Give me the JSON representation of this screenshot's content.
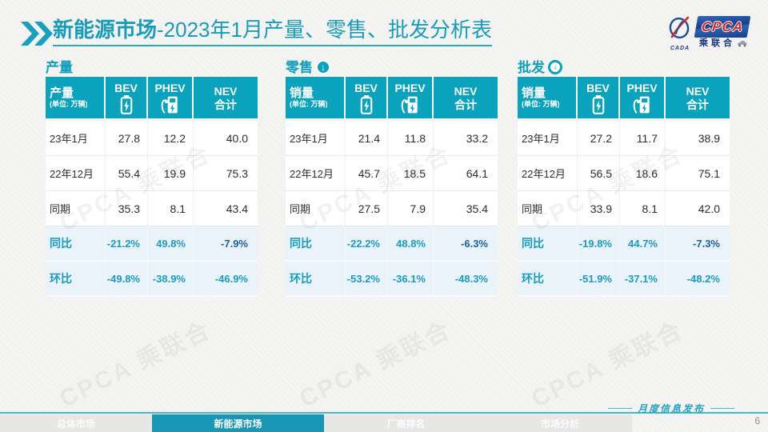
{
  "title": {
    "bold": "新能源市场",
    "rest": "-2023年1月产量、零售、批发分析表"
  },
  "logo": {
    "cpca": "CPCA",
    "cn": "乘联合",
    "sub": "CADA"
  },
  "watermark": "CPCA 乘联合",
  "colors": {
    "accent": "#0aa2bc",
    "pct_text": "#1b9cc4",
    "highlight": "#1a61a6",
    "active_tab": "#1896b3",
    "pct_row_bg": "#e9f3f9"
  },
  "tables": [
    {
      "section_title": "产量",
      "badge": "",
      "header_label": "产量",
      "header_unit": "(单位: 万辆)",
      "columns": [
        {
          "label": "BEV",
          "icon": "bev-battery-icon"
        },
        {
          "label": "PHEV",
          "icon": "phev-charger-icon"
        },
        {
          "label": "NEV",
          "sublabel": "合计"
        }
      ],
      "rows": [
        {
          "label": "23年1月",
          "type": "data",
          "values": [
            "27.8",
            "12.2",
            "40.0"
          ]
        },
        {
          "label": "22年12月",
          "type": "data",
          "values": [
            "55.4",
            "19.9",
            "75.3"
          ]
        },
        {
          "label": "同期",
          "type": "data",
          "values": [
            "35.3",
            "8.1",
            "43.4"
          ]
        },
        {
          "label": "同比",
          "type": "pct",
          "highlight_last": true,
          "values": [
            "-21.2%",
            "49.8%",
            "-7.9%"
          ]
        },
        {
          "label": "环比",
          "type": "pct",
          "values": [
            "-49.8%",
            "-38.9%",
            "-46.9%"
          ]
        }
      ]
    },
    {
      "section_title": "零售",
      "badge": "down-filled",
      "header_label": "销量",
      "header_unit": "(单位: 万辆)",
      "columns": [
        {
          "label": "BEV",
          "icon": "bev-battery-icon"
        },
        {
          "label": "PHEV",
          "icon": "phev-charger-icon"
        },
        {
          "label": "NEV",
          "sublabel": "合计"
        }
      ],
      "rows": [
        {
          "label": "23年1月",
          "type": "data",
          "values": [
            "21.4",
            "11.8",
            "33.2"
          ]
        },
        {
          "label": "22年12月",
          "type": "data",
          "values": [
            "45.7",
            "18.5",
            "64.1"
          ]
        },
        {
          "label": "同期",
          "type": "data",
          "values": [
            "27.5",
            "7.9",
            "35.4"
          ]
        },
        {
          "label": "同比",
          "type": "pct",
          "highlight_last": true,
          "values": [
            "-22.2%",
            "48.8%",
            "-6.3%"
          ]
        },
        {
          "label": "环比",
          "type": "pct",
          "values": [
            "-53.2%",
            "-36.1%",
            "-48.3%"
          ]
        }
      ]
    },
    {
      "section_title": "批发",
      "badge": "down-outline",
      "header_label": "销量",
      "header_unit": "(单位: 万辆)",
      "columns": [
        {
          "label": "BEV",
          "icon": "bev-battery-icon"
        },
        {
          "label": "PHEV",
          "icon": "phev-charger-icon"
        },
        {
          "label": "NEV",
          "sublabel": "合计"
        }
      ],
      "rows": [
        {
          "label": "23年1月",
          "type": "data",
          "values": [
            "27.2",
            "11.7",
            "38.9"
          ]
        },
        {
          "label": "22年12月",
          "type": "data",
          "values": [
            "56.5",
            "18.6",
            "75.1"
          ]
        },
        {
          "label": "同期",
          "type": "data",
          "values": [
            "33.9",
            "8.1",
            "42.0"
          ]
        },
        {
          "label": "同比",
          "type": "pct",
          "highlight_last": true,
          "values": [
            "-19.8%",
            "44.7%",
            "-7.3%"
          ]
        },
        {
          "label": "环比",
          "type": "pct",
          "values": [
            "-51.9%",
            "-37.1%",
            "-48.2%"
          ]
        }
      ]
    }
  ],
  "footer": {
    "tabs": [
      {
        "label": "总体市场",
        "active": false
      },
      {
        "label": "新能源市场",
        "active": true
      },
      {
        "label": "厂商排名",
        "active": false
      },
      {
        "label": "市场分析",
        "active": false
      }
    ],
    "caption": "月度信息发布",
    "page_number": "6"
  }
}
